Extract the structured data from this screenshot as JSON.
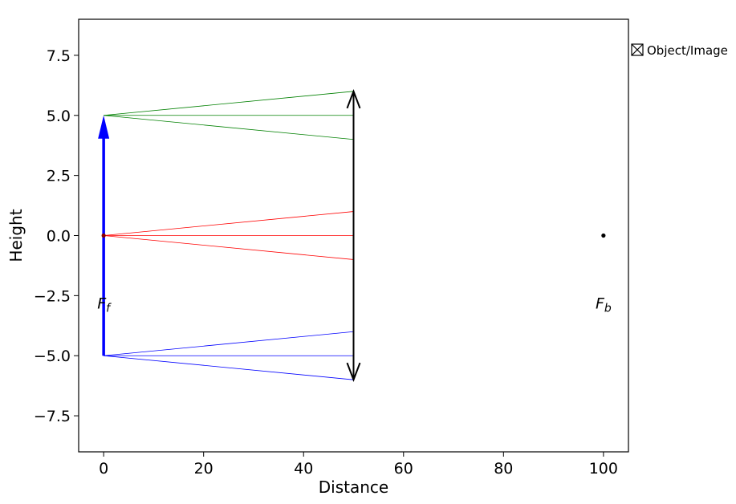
{
  "chart_data": {
    "type": "line",
    "xlabel": "Distance",
    "ylabel": "Height",
    "xlim": [
      -5,
      105
    ],
    "ylim": [
      -9,
      9
    ],
    "xticks": [
      0,
      20,
      40,
      60,
      80,
      100
    ],
    "yticks": [
      -7.5,
      -5.0,
      -2.5,
      0.0,
      2.5,
      5.0,
      7.5
    ],
    "xtick_labels": [
      "0",
      "20",
      "40",
      "60",
      "80",
      "100"
    ],
    "ytick_labels": [
      "−7.5",
      "−5.0",
      "−2.5",
      "0.0",
      "2.5",
      "5.0",
      "7.5"
    ],
    "grid": false,
    "legend": {
      "position": "right, outside top",
      "entries": [
        "Object/Image"
      ]
    },
    "object": {
      "x": 0,
      "y_from": -5,
      "y_to": 5,
      "color": "#0000ff"
    },
    "lens": {
      "x": 50,
      "y_from": -6,
      "y_to": 6,
      "color": "#000000"
    },
    "ray_bundles": [
      {
        "color": "#008000",
        "from": [
          0,
          5
        ],
        "to": [
          [
            50,
            6
          ],
          [
            50,
            5
          ],
          [
            50,
            4
          ]
        ]
      },
      {
        "color": "#ff0000",
        "from": [
          0,
          0
        ],
        "to": [
          [
            50,
            1
          ],
          [
            50,
            0
          ],
          [
            50,
            -1
          ]
        ]
      },
      {
        "color": "#0000ff",
        "from": [
          0,
          -5
        ],
        "to": [
          [
            50,
            -4
          ],
          [
            50,
            -5
          ],
          [
            50,
            -6
          ]
        ]
      }
    ],
    "focal_points": [
      {
        "x": 0,
        "y": 0,
        "label_main": "F",
        "label_sub": "f",
        "label_y": -2.8,
        "dot_color": "#8b0000"
      },
      {
        "x": 100,
        "y": 0,
        "label_main": "F",
        "label_sub": "b",
        "label_y": -2.8,
        "dot_color": "#000000"
      }
    ]
  }
}
